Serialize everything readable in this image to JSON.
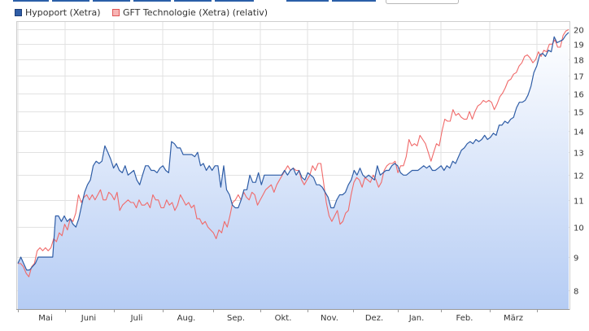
{
  "colors": {
    "series1": "#2f5da6",
    "series2": "#f06a6a",
    "area_top": "#ffffff",
    "area_bottom": "#b5ccf4",
    "grid": "#e2e2e2",
    "tab_accent": "#2a5fa8"
  },
  "chart_data": {
    "type": "line",
    "title": "",
    "xlabel": "",
    "ylabel": "",
    "y_scale": "log",
    "ylim": [
      7.5,
      20.6
    ],
    "x_tick_labels": [
      "Mai",
      "Juni",
      "Juli",
      "Aug.",
      "Sep.",
      "Okt.",
      "Nov.",
      "Dez.",
      "Jan.",
      "Feb.",
      "März"
    ],
    "y_tick_labels": [
      "8",
      "9",
      "10",
      "11",
      "12",
      "13",
      "14",
      "15",
      "16",
      "17",
      "18",
      "19",
      "20"
    ],
    "grid": true,
    "legend_position": "top-left",
    "series": [
      {
        "name": "Hypoport (Xetra)",
        "style": "line-with-area",
        "values": [
          8.8,
          9.0,
          8.8,
          8.6,
          8.6,
          8.7,
          8.8,
          9.0,
          9.0,
          9.0,
          9.0,
          9.0,
          9.0,
          10.4,
          10.4,
          10.2,
          10.4,
          10.2,
          10.3,
          10.1,
          10.0,
          10.3,
          10.8,
          11.3,
          11.6,
          11.8,
          12.4,
          12.6,
          12.5,
          12.6,
          13.3,
          13.0,
          12.7,
          12.3,
          12.5,
          12.2,
          12.1,
          12.4,
          12.0,
          12.1,
          12.2,
          11.8,
          11.6,
          12.0,
          12.4,
          12.4,
          12.2,
          12.2,
          12.1,
          12.3,
          12.4,
          12.2,
          12.1,
          13.5,
          13.4,
          13.2,
          13.2,
          12.9,
          12.9,
          12.9,
          12.9,
          12.8,
          13.0,
          12.4,
          12.5,
          12.2,
          12.4,
          12.2,
          12.4,
          12.4,
          11.5,
          12.4,
          11.4,
          11.2,
          10.8,
          10.7,
          10.7,
          11.0,
          11.4,
          11.4,
          12.0,
          11.7,
          11.7,
          12.1,
          11.6,
          12.0,
          12.0,
          12.0,
          12.0,
          12.0,
          12.0,
          12.0,
          12.2,
          12.0,
          12.2,
          12.3,
          12.0,
          12.2,
          11.9,
          11.8,
          12.1,
          12.0,
          11.9,
          11.6,
          11.6,
          11.5,
          11.3,
          11.1,
          10.7,
          10.7,
          11.0,
          11.2,
          11.2,
          11.3,
          11.6,
          11.8,
          12.2,
          12.0,
          12.3,
          12.0,
          11.9,
          12.0,
          11.9,
          11.8,
          12.4,
          12.0,
          12.1,
          12.2,
          12.2,
          12.4,
          12.5,
          12.4,
          12.1,
          12.0,
          12.0,
          12.1,
          12.2,
          12.2,
          12.2,
          12.3,
          12.4,
          12.3,
          12.4,
          12.2,
          12.2,
          12.3,
          12.4,
          12.2,
          12.4,
          12.3,
          12.6,
          12.5,
          12.8,
          13.1,
          13.2,
          13.4,
          13.5,
          13.4,
          13.6,
          13.5,
          13.6,
          13.8,
          13.6,
          13.7,
          13.9,
          13.8,
          14.3,
          14.3,
          14.5,
          14.4,
          14.6,
          14.7,
          15.2,
          15.5,
          15.5,
          15.6,
          15.9,
          16.4,
          17.2,
          17.6,
          18.3,
          18.4,
          18.2,
          18.6,
          18.5,
          19.5,
          19.1,
          19.2,
          19.3,
          19.6,
          19.8
        ]
      },
      {
        "name": "GFT Technologie (Xetra) (relativ)",
        "style": "line",
        "values": [
          8.8,
          8.8,
          8.7,
          8.5,
          8.4,
          8.7,
          8.8,
          9.2,
          9.3,
          9.2,
          9.3,
          9.2,
          9.3,
          9.6,
          9.5,
          9.8,
          9.7,
          10.1,
          9.9,
          10.3,
          10.2,
          10.5,
          11.2,
          10.9,
          11.1,
          11.2,
          11.0,
          11.2,
          11.0,
          11.2,
          11.4,
          11.0,
          11.0,
          11.3,
          11.2,
          11.0,
          11.3,
          10.6,
          10.8,
          10.9,
          11.0,
          10.9,
          10.9,
          10.7,
          11.0,
          10.8,
          10.8,
          10.9,
          10.7,
          11.2,
          11.0,
          11.0,
          10.7,
          10.7,
          11.0,
          10.8,
          10.9,
          10.6,
          10.8,
          11.2,
          11.0,
          10.8,
          10.9,
          10.7,
          10.8,
          10.3,
          10.3,
          10.1,
          10.2,
          10.0,
          9.9,
          9.8,
          9.6,
          9.9,
          9.8,
          10.2,
          10.0,
          10.4,
          10.9,
          11.0,
          11.2,
          11.0,
          11.3,
          11.1,
          11.0,
          11.3,
          11.2,
          10.8,
          11.0,
          11.2,
          11.4,
          11.5,
          11.6,
          11.3,
          11.6,
          11.8,
          12.0,
          12.2,
          12.4,
          12.2,
          12.3,
          12.2,
          12.2,
          11.8,
          11.6,
          11.8,
          12.0,
          12.4,
          12.2,
          12.5,
          12.5,
          11.7,
          10.9,
          10.4,
          10.2,
          10.4,
          10.6,
          10.1,
          10.2,
          10.5,
          10.6,
          11.2,
          11.7,
          11.9,
          11.8,
          11.5,
          11.9,
          11.8,
          11.7,
          12.0,
          11.8,
          11.5,
          11.7,
          12.2,
          12.4,
          12.5,
          12.5,
          12.6,
          12.1,
          12.4,
          12.4,
          12.8,
          13.6,
          13.3,
          13.4,
          13.3,
          13.8,
          13.6,
          13.4,
          13.0,
          12.6,
          13.0,
          13.4,
          13.3,
          14.0,
          14.6,
          14.5,
          14.5,
          15.1,
          14.8,
          14.9,
          14.7,
          14.6,
          14.6,
          15.0,
          14.6,
          15.0,
          15.3,
          15.4,
          15.6,
          15.5,
          15.6,
          15.5,
          15.1,
          15.4,
          15.8,
          16.0,
          16.3,
          16.7,
          16.8,
          17.1,
          17.2,
          17.6,
          17.8,
          18.2,
          18.3,
          18.1,
          17.8,
          18.0,
          18.5,
          18.2,
          18.6,
          18.5,
          19.0,
          19.0,
          19.3,
          18.8,
          18.8,
          19.6,
          19.9,
          20.0
        ]
      }
    ]
  }
}
